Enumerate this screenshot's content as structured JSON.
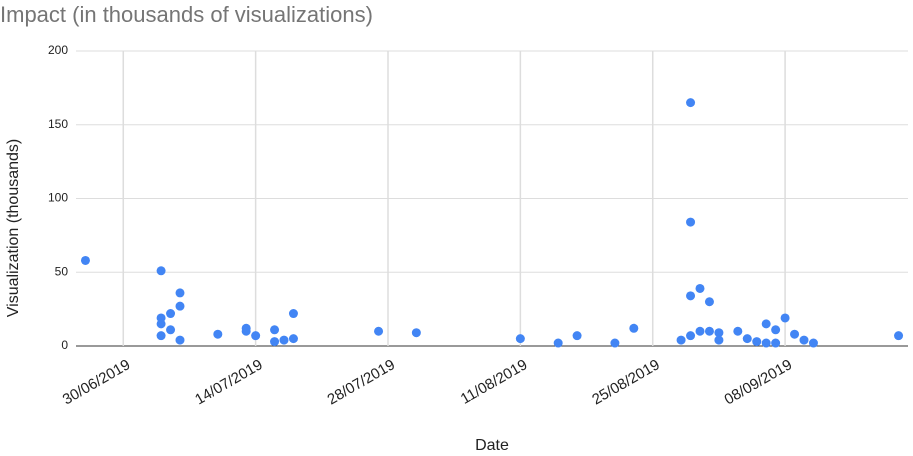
{
  "chart_data": {
    "type": "scatter",
    "title": "Impact (in thousands of visualizations)",
    "x_label": "Date",
    "y_label": "Visualization (thousands)",
    "x": [
      "2019-06-26",
      "2019-07-04",
      "2019-07-04",
      "2019-07-04",
      "2019-07-04",
      "2019-07-05",
      "2019-07-06",
      "2019-07-06",
      "2019-07-05",
      "2019-07-06",
      "2019-07-10",
      "2019-07-13",
      "2019-07-13",
      "2019-07-14",
      "2019-07-16",
      "2019-07-16",
      "2019-07-17",
      "2019-07-18",
      "2019-07-18",
      "2019-07-27",
      "2019-07-31",
      "2019-08-11",
      "2019-08-15",
      "2019-08-17",
      "2019-08-21",
      "2019-08-23",
      "2019-08-28",
      "2019-08-29",
      "2019-08-29",
      "2019-08-29",
      "2019-08-29",
      "2019-08-30",
      "2019-08-31",
      "2019-08-30",
      "2019-08-31",
      "2019-09-01",
      "2019-09-01",
      "2019-09-03",
      "2019-09-04",
      "2019-09-05",
      "2019-09-06",
      "2019-09-06",
      "2019-09-07",
      "2019-09-07",
      "2019-09-08",
      "2019-09-09",
      "2019-09-10",
      "2019-09-11",
      "2019-09-20"
    ],
    "series": [
      {
        "name": "Visualization (thousands)",
        "color": "#4285f4",
        "values": [
          58,
          51,
          19,
          15,
          7,
          22,
          27,
          36,
          11,
          4,
          8,
          10,
          12,
          7,
          11,
          3,
          4,
          5,
          22,
          10,
          9,
          5,
          2,
          7,
          2,
          12,
          4,
          165,
          84,
          34,
          7,
          39,
          30,
          10,
          10,
          9,
          4,
          10,
          5,
          3,
          15,
          2,
          11,
          2,
          19,
          8,
          4,
          2,
          7
        ]
      }
    ],
    "xlim": [
      "2019-06-25",
      "2019-09-21"
    ],
    "xticks": [
      {
        "value": "2019-06-30",
        "label": "30/06/2019"
      },
      {
        "value": "2019-07-14",
        "label": "14/07/2019"
      },
      {
        "value": "2019-07-28",
        "label": "28/07/2019"
      },
      {
        "value": "2019-08-11",
        "label": "11/08/2019"
      },
      {
        "value": "2019-08-25",
        "label": "25/08/2019"
      },
      {
        "value": "2019-09-08",
        "label": "08/09/2019"
      }
    ],
    "ylim": [
      0,
      200
    ],
    "yticks": [
      0,
      50,
      100,
      150,
      200
    ],
    "grid": true
  }
}
